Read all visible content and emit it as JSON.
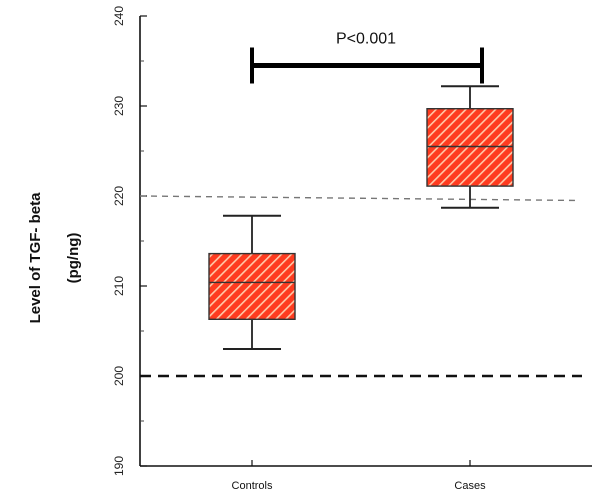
{
  "chart_data": {
    "type": "box",
    "title": "",
    "ylabel": "Level of TGF- beta",
    "ylabel_unit": "(pg/ng)",
    "xlabel": "",
    "ylim": [
      190,
      240
    ],
    "yticks": [
      190,
      200,
      210,
      220,
      230,
      240
    ],
    "categories": [
      "Controls",
      "Cases"
    ],
    "boxes": [
      {
        "category": "Controls",
        "whisker_low": 203.0,
        "q1": 206.3,
        "median": 210.4,
        "q3": 213.6,
        "whisker_high": 217.8
      },
      {
        "category": "Cases",
        "whisker_low": 218.7,
        "q1": 221.1,
        "median": 225.5,
        "q3": 229.7,
        "whisker_high": 232.2
      }
    ],
    "reference_lines": [
      {
        "y": 200,
        "style": "dashed",
        "thickness": "heavy"
      },
      {
        "y_start": 220,
        "y_end": 219.5,
        "style": "dashed",
        "thickness": "light"
      }
    ],
    "significance": {
      "label": "P<0.001",
      "from": "Controls",
      "to": "Cases",
      "y": 234.5
    },
    "box_fill": "#ff3b1f",
    "hatch_color": "#ffc9a8",
    "grid": false,
    "legend": "none"
  }
}
